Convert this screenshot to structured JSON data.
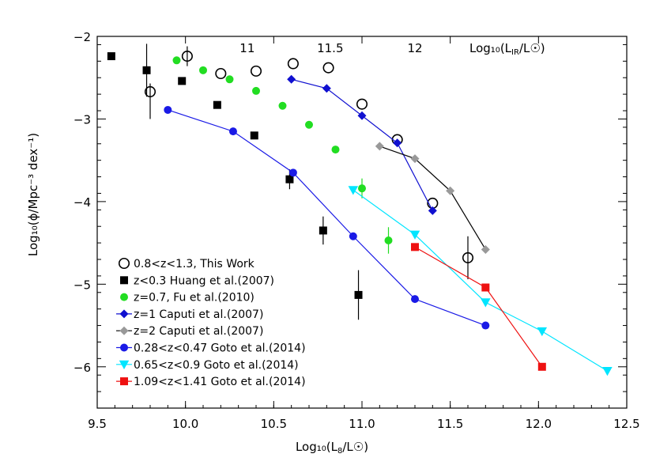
{
  "chart_data": {
    "type": "scatter",
    "xlabel": "Log₁₀(L₈/L☉)",
    "ylabel": "Log₁₀(ϕ/Mpc⁻³ dex⁻¹)",
    "top_axis_label": "Log₁₀(L_IR/L☉)",
    "top_axis_label_main": "Log₁₀(L",
    "top_axis_label_sub": "IR",
    "top_axis_label_end": "/L☉)",
    "xlabel_main": "Log₁₀(L",
    "xlabel_sub": "8",
    "xlabel_end": "/L☉)",
    "xlim": [
      9.5,
      12.5
    ],
    "ylim": [
      -6.5,
      -2.0
    ],
    "x_ticks": [
      9.5,
      10.0,
      10.5,
      11.0,
      11.5,
      12.0,
      12.5
    ],
    "x_tick_labels": [
      "9.5",
      "10.0",
      "10.5",
      "11.0",
      "11.5",
      "12.0",
      "12.5"
    ],
    "y_ticks": [
      -6,
      -5,
      -4,
      -3,
      -2
    ],
    "y_tick_labels": [
      "−6",
      "−5",
      "−4",
      "−3",
      "−2"
    ],
    "top_ticks": [
      {
        "label": "11",
        "x": 10.35
      },
      {
        "label": "11.5",
        "x": 10.82
      },
      {
        "label": "12",
        "x": 11.3
      }
    ],
    "legend_position": "bottom-left",
    "series": [
      {
        "name": "0.8<z<1.3, This Work",
        "marker": "open-circle",
        "color": "#000000",
        "line": false,
        "x": [
          9.8,
          10.01,
          10.2,
          10.4,
          10.61,
          10.81,
          11.0,
          11.2,
          11.4,
          11.6
        ],
        "y": [
          -2.67,
          -2.24,
          -2.45,
          -2.42,
          -2.33,
          -2.38,
          -2.82,
          -3.25,
          -4.02,
          -4.68
        ],
        "err": [
          [
            0.33,
            0.1
          ],
          [
            0.12,
            0.12
          ],
          [
            0,
            0
          ],
          [
            0,
            0
          ],
          [
            0,
            0
          ],
          [
            0,
            0
          ],
          [
            0,
            0
          ],
          [
            0,
            0
          ],
          [
            0,
            0
          ],
          [
            0.26,
            0.26
          ]
        ]
      },
      {
        "name": "z<0.3 Huang et al.(2007)",
        "marker": "square",
        "color": "#000000",
        "line": false,
        "x": [
          9.58,
          9.78,
          9.98,
          10.18,
          10.39,
          10.59,
          10.78,
          10.98
        ],
        "y": [
          -2.24,
          -2.41,
          -2.54,
          -2.83,
          -3.2,
          -3.73,
          -4.35,
          -5.13
        ],
        "err": [
          [
            0,
            0
          ],
          [
            0.32,
            0.32
          ],
          [
            0,
            0
          ],
          [
            0,
            0
          ],
          [
            0,
            0
          ],
          [
            0.12,
            0.12
          ],
          [
            0.17,
            0.17
          ],
          [
            0.3,
            0.3
          ]
        ]
      },
      {
        "name": "z=0.7, Fu et al.(2010)",
        "marker": "circle",
        "color": "#22dd22",
        "line": false,
        "x": [
          9.95,
          10.1,
          10.25,
          10.4,
          10.55,
          10.7,
          10.85,
          11.0,
          11.15
        ],
        "y": [
          -2.29,
          -2.41,
          -2.52,
          -2.66,
          -2.84,
          -3.07,
          -3.37,
          -3.84,
          -4.47
        ],
        "err": [
          [
            0,
            0
          ],
          [
            0,
            0
          ],
          [
            0,
            0
          ],
          [
            0,
            0
          ],
          [
            0,
            0
          ],
          [
            0,
            0
          ],
          [
            0,
            0
          ],
          [
            0.12,
            0.12
          ],
          [
            0.16,
            0.16
          ]
        ]
      },
      {
        "name": "z=1 Caputi et al.(2007)",
        "marker": "diamond",
        "color": "#1010d0",
        "line": true,
        "x": [
          10.6,
          10.8,
          11.0,
          11.2,
          11.4
        ],
        "y": [
          -2.52,
          -2.63,
          -2.96,
          -3.29,
          -4.11
        ]
      },
      {
        "name": "z=2 Caputi et al.(2007)",
        "marker": "diamond",
        "color": "#999999",
        "line": true,
        "x": [
          11.1,
          11.3,
          11.5,
          11.7
        ],
        "y": [
          -3.33,
          -3.48,
          -3.87,
          -4.58
        ]
      },
      {
        "name": "0.28<z<0.47 Goto et al.(2014)",
        "marker": "circle",
        "color": "#1a1ae6",
        "line": true,
        "x": [
          9.9,
          10.27,
          10.61,
          10.95,
          11.3,
          11.7
        ],
        "y": [
          -2.89,
          -3.15,
          -3.65,
          -4.42,
          -5.18,
          -5.5
        ]
      },
      {
        "name": "0.65<z<0.9 Goto et al.(2014)",
        "marker": "triangle-down",
        "color": "#00e5ff",
        "line": true,
        "x": [
          10.95,
          11.3,
          11.7,
          12.02,
          12.39
        ],
        "y": [
          -3.86,
          -4.4,
          -5.22,
          -5.57,
          -6.05
        ]
      },
      {
        "name": "1.09<z<1.41 Goto et al.(2014)",
        "marker": "square",
        "color": "#ee1111",
        "line": true,
        "x": [
          11.3,
          11.7,
          12.02
        ],
        "y": [
          -4.55,
          -5.04,
          -6.0
        ]
      }
    ]
  }
}
